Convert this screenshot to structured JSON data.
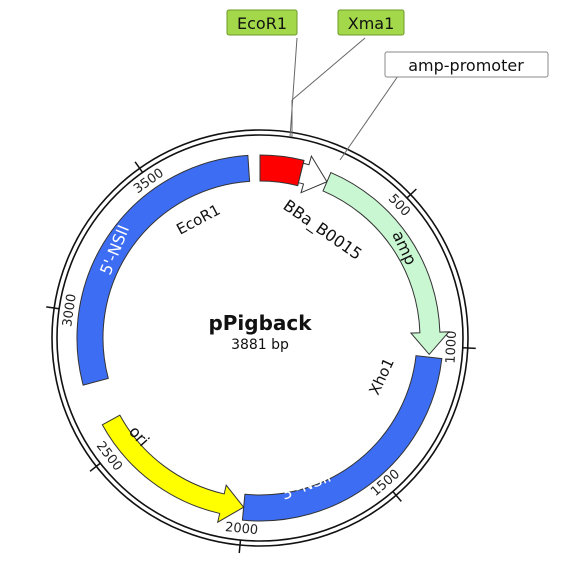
{
  "plasmid": {
    "name": "pPigback",
    "size_label": "3881 bp",
    "length_bp": 3881
  },
  "ticks": [
    {
      "bp": 500,
      "label": "500"
    },
    {
      "bp": 1000,
      "label": "1000"
    },
    {
      "bp": 1500,
      "label": "1500"
    },
    {
      "bp": 2000,
      "label": "2000"
    },
    {
      "bp": 2500,
      "label": "2500"
    },
    {
      "bp": 3000,
      "label": "3000"
    },
    {
      "bp": 3500,
      "label": "3500"
    }
  ],
  "features": [
    {
      "id": "bba-b0015",
      "name": "BBa_B0015",
      "start": 0,
      "end": 150,
      "color": "#ff0000",
      "shape": "block"
    },
    {
      "id": "amp-promoter",
      "name": "amp-promoter",
      "start": 150,
      "end": 250,
      "color": "#ffffff",
      "shape": "arrow"
    },
    {
      "id": "amp",
      "name": "amp",
      "start": 250,
      "end": 1030,
      "color": "#c8f7d2",
      "shape": "arrow"
    },
    {
      "id": "3-nsii",
      "name": "3'-NSII",
      "start": 1040,
      "end": 2000,
      "color": "#3d6df2",
      "shape": "block"
    },
    {
      "id": "ori",
      "name": "ori",
      "start": 2000,
      "end": 2600,
      "color": "#ffff00",
      "shape": "arrow-ccw"
    },
    {
      "id": "5-nsii",
      "name": "5'-NSII",
      "start": 2750,
      "end": 3840,
      "color": "#3d6df2",
      "shape": "block"
    }
  ],
  "sites": {
    "ecor1_inner": "EcoR1",
    "xho1": "Xho1"
  },
  "callouts": [
    {
      "id": "ecor1",
      "text": "EcoR1",
      "bg": "#a3d84b"
    },
    {
      "id": "xma1",
      "text": "Xma1",
      "bg": "#a3d84b"
    },
    {
      "id": "amp-promoter",
      "text": "amp-promoter",
      "bg": "#ffffff"
    }
  ]
}
